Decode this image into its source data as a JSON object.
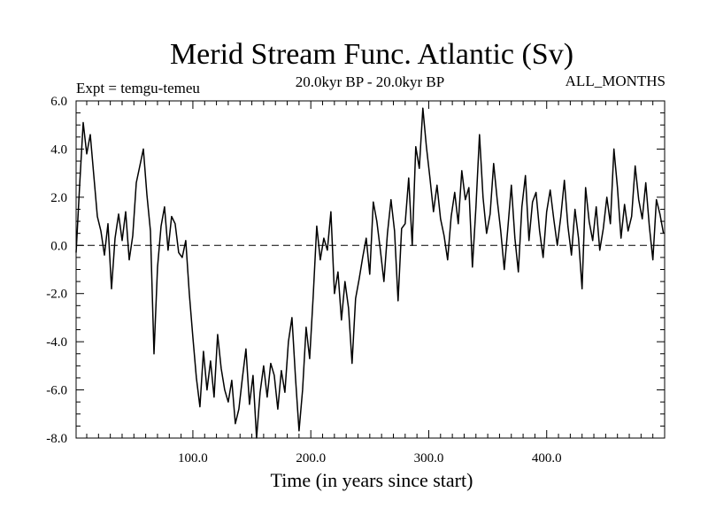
{
  "chart_data": {
    "type": "line",
    "title": "Merid Stream Func. Atlantic (Sv)",
    "subtitle": "20.0kyr BP - 20.0kyr BP",
    "annotation_left": "Expt = temgu-temeu",
    "annotation_right": "ALL_MONTHS",
    "xlabel": "Time (in years since start)",
    "ylabel": "",
    "xlim": [
      1,
      500
    ],
    "ylim": [
      -8,
      6
    ],
    "x_ticks": [
      100,
      200,
      300,
      400
    ],
    "x_tick_labels": [
      "100.0",
      "200.0",
      "300.0",
      "400.0"
    ],
    "y_ticks": [
      6,
      4,
      2,
      0,
      -2,
      -4,
      -6,
      -8
    ],
    "y_tick_labels": [
      "6.0",
      "4.0",
      "2.0",
      "0.0",
      "-2.0",
      "-4.0",
      "-6.0",
      "-8.0"
    ],
    "zero_line": true,
    "series": [
      {
        "name": "Merid Stream Func.",
        "x_start": 1,
        "x_step": 3,
        "values": [
          -0.3,
          2.5,
          5.1,
          3.8,
          4.6,
          2.9,
          1.2,
          0.6,
          -0.4,
          0.9,
          -1.8,
          0.3,
          1.3,
          0.2,
          1.4,
          -0.6,
          0.4,
          2.6,
          3.3,
          4.0,
          2.1,
          0.6,
          -4.5,
          -0.9,
          0.8,
          1.6,
          -0.2,
          1.2,
          0.9,
          -0.3,
          -0.5,
          0.2,
          -2.0,
          -3.8,
          -5.5,
          -6.7,
          -4.4,
          -6.0,
          -4.8,
          -6.3,
          -3.7,
          -5.1,
          -6.0,
          -6.5,
          -5.6,
          -7.4,
          -6.8,
          -5.5,
          -4.3,
          -6.6,
          -5.4,
          -8.0,
          -6.1,
          -5.0,
          -6.3,
          -4.9,
          -5.4,
          -6.8,
          -5.2,
          -6.1,
          -4.0,
          -3.0,
          -5.5,
          -7.7,
          -6.0,
          -3.4,
          -4.7,
          -2.1,
          0.8,
          -0.6,
          0.3,
          -0.2,
          1.4,
          -2.0,
          -1.1,
          -3.1,
          -1.5,
          -2.6,
          -4.9,
          -2.2,
          -1.4,
          -0.5,
          0.3,
          -1.2,
          1.8,
          1.0,
          -0.2,
          -1.5,
          0.5,
          1.9,
          0.6,
          -2.3,
          0.7,
          0.9,
          2.8,
          0.0,
          4.1,
          3.2,
          5.7,
          4.1,
          2.8,
          1.4,
          2.5,
          1.1,
          0.4,
          -0.6,
          1.2,
          2.2,
          0.9,
          3.1,
          1.9,
          2.4,
          -0.9,
          1.6,
          4.6,
          2.0,
          0.5,
          1.3,
          3.4,
          1.9,
          0.6,
          -1.0,
          0.7,
          2.5,
          0.3,
          -1.1,
          1.6,
          2.9,
          0.2,
          1.8,
          2.2,
          0.6,
          -0.5,
          1.4,
          2.3,
          1.1,
          0.0,
          1.2,
          2.7,
          0.8,
          -0.4,
          1.5,
          0.3,
          -1.8,
          2.4,
          1.0,
          0.2,
          1.6,
          -0.2,
          0.7,
          2.0,
          0.9,
          4.0,
          2.4,
          0.3,
          1.7,
          0.6,
          1.2,
          3.3,
          1.9,
          1.1,
          2.6,
          0.8,
          -0.6,
          1.9,
          1.3,
          0.5,
          2.2,
          1.4,
          -0.9,
          1.1,
          2.4,
          3.1,
          1.5,
          0.3,
          2.7,
          1.0,
          -0.4,
          1.8,
          1.2,
          0.6,
          2.0,
          0.9,
          2.5,
          3.0,
          1.6,
          0.4,
          1.5,
          -0.3,
          0.2,
          2.1,
          1.3,
          2.8,
          4.9,
          1.5,
          0.6,
          2.0,
          1.0,
          -0.5,
          0.8,
          2.6,
          1.4,
          0.3,
          1.9,
          -0.6,
          0.7,
          1.2,
          0.5,
          -1.1,
          0.9,
          1.6,
          0.1,
          -0.4,
          1.4,
          0.6,
          1.0,
          2.4,
          1.1,
          0.2,
          1.6,
          0.7,
          -0.8,
          0.5,
          -2.1,
          -0.3,
          0.6,
          1.4,
          0.8,
          2.3,
          1.2,
          0.1,
          0.9,
          1.7,
          -0.4,
          0.4,
          1.5,
          0.6,
          2.8,
          1.3,
          0.2,
          -0.7,
          1.0,
          3.3,
          1.6,
          0.4,
          1.2,
          2.1,
          0.3,
          -3.0,
          -5.6,
          -2.2,
          -0.4,
          0.6,
          1.9,
          0.8,
          2.5,
          1.4,
          0.2,
          3.8,
          1.9,
          0.9,
          1.6,
          0.5,
          2.4,
          1.1,
          -0.9,
          0.4,
          1.7,
          0.9,
          2.7,
          1.5,
          0.1,
          1.0,
          0.6,
          -0.5,
          1.4,
          2.0,
          0.8,
          -0.3,
          1.2,
          0.4,
          1.7,
          2.5,
          0.9,
          1.3,
          0.3,
          1.8,
          1.0,
          2.8,
          1.2,
          0.4,
          -0.6,
          1.5,
          0.7,
          1.3,
          2.1,
          0.9,
          0.2,
          1.6,
          0.8,
          -0.4,
          1.0,
          2.9,
          1.4,
          0.3,
          0.8,
          1.9,
          2.6,
          1.0,
          0.2,
          1.5,
          0.6,
          2.2,
          1.1,
          0.3,
          -0.8,
          0.9,
          1.8,
          0.5,
          0.1,
          1.1,
          0.7,
          0.3,
          -0.1,
          0.5,
          1.2,
          0.6,
          -0.4,
          0.8,
          1.9,
          1.1,
          -3.4,
          0.4,
          1.8,
          0.7,
          0.2,
          1.3,
          -1.6,
          0.6,
          1.2,
          2.0,
          0.8,
          3.1,
          1.4,
          0.5,
          1.9,
          1.0,
          0.3,
          -0.7,
          1.1,
          2.4,
          0.9,
          0.2,
          1.6,
          0.8,
          2.3,
          1.2,
          0.4,
          -0.4,
          1.0,
          3.0,
          1.3,
          0.5,
          1.8,
          0.9,
          0.3,
          -3.0,
          -1.2,
          0.6,
          1.5,
          0.7,
          2.1,
          1.1,
          0.3,
          1.4,
          0.6,
          -0.5,
          0.9,
          2.0,
          1.0,
          0.4,
          1.7,
          0.8,
          2.5,
          1.2,
          0.2,
          -3.7,
          0.5,
          1.3,
          0.7,
          2.2,
          1.0,
          0.3,
          1.9,
          0.6,
          -0.9,
          0.8,
          1.6,
          0.5,
          2.4,
          1.1,
          0.3,
          4.5,
          3.2,
          1.4,
          0.6,
          2.6,
          1.3,
          4.0,
          2.1,
          1.0,
          3.3,
          1.7,
          0.4,
          2.8,
          1.5,
          0.2,
          3.0,
          1.4,
          0.6,
          2.2,
          1.0,
          0.0,
          -1.5,
          -0.5,
          -1.2,
          -0.3,
          0.4,
          0.9,
          1.5,
          1.3,
          0.6,
          0.1,
          -1.8,
          -3.5,
          -1.0,
          -0.6,
          -1.8,
          0.1,
          1.4,
          2.5,
          3.4,
          2.1,
          2.8
        ]
      }
    ]
  }
}
